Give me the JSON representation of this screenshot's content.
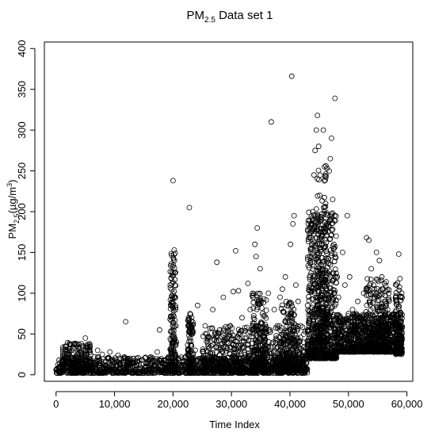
{
  "chart_data": {
    "type": "scatter",
    "title": {
      "main": "PM",
      "sub": "2.5",
      "rest": " Data set 1"
    },
    "xlabel": "Time Index",
    "ylabel": {
      "main": "PM",
      "sub": "2.5",
      "mid": "(µg/m",
      "sup": "3",
      "end": ")"
    },
    "xlim": [
      -2000,
      61000
    ],
    "ylim": [
      -8,
      408
    ],
    "x_ticks": [
      0,
      10000,
      20000,
      30000,
      40000,
      50000,
      60000
    ],
    "x_tick_labels": [
      "0",
      "10,000",
      "20,000",
      "30,000",
      "40,000",
      "50,000",
      "60,000"
    ],
    "y_ticks": [
      0,
      50,
      100,
      150,
      200,
      250,
      300,
      350,
      400
    ],
    "y_tick_labels": [
      "0",
      "50",
      "100",
      "150",
      "200",
      "250",
      "300",
      "350",
      "400"
    ],
    "grid": false,
    "marker": "open-circle",
    "marker_color": "#000000",
    "points": [
      [
        500,
        18
      ],
      [
        900,
        12
      ],
      [
        1200,
        5
      ],
      [
        1700,
        22
      ],
      [
        2100,
        15
      ],
      [
        2600,
        30
      ],
      [
        3000,
        38
      ],
      [
        3400,
        20
      ],
      [
        3900,
        10
      ],
      [
        4300,
        25
      ],
      [
        4700,
        35
      ],
      [
        5000,
        45
      ],
      [
        5300,
        18
      ],
      [
        5800,
        28
      ],
      [
        6200,
        12
      ],
      [
        6600,
        22
      ],
      [
        7100,
        30
      ],
      [
        7500,
        15
      ],
      [
        7900,
        25
      ],
      [
        8300,
        12
      ],
      [
        8800,
        20
      ],
      [
        9200,
        28
      ],
      [
        9700,
        10
      ],
      [
        10100,
        18
      ],
      [
        10600,
        24
      ],
      [
        11000,
        12
      ],
      [
        11500,
        20
      ],
      [
        11900,
        65
      ],
      [
        12300,
        15
      ],
      [
        12800,
        8
      ],
      [
        13300,
        14
      ],
      [
        13800,
        20
      ],
      [
        14200,
        12
      ],
      [
        14700,
        18
      ],
      [
        15200,
        10
      ],
      [
        15700,
        16
      ],
      [
        16200,
        22
      ],
      [
        16800,
        12
      ],
      [
        17300,
        28
      ],
      [
        17700,
        55
      ],
      [
        18200,
        15
      ],
      [
        18700,
        12
      ],
      [
        19200,
        20
      ],
      [
        19700,
        30
      ],
      [
        20000,
        238
      ],
      [
        20100,
        50
      ],
      [
        20200,
        153
      ],
      [
        20250,
        140
      ],
      [
        20300,
        125
      ],
      [
        20350,
        110
      ],
      [
        20400,
        95
      ],
      [
        20450,
        80
      ],
      [
        20500,
        60
      ],
      [
        20600,
        40
      ],
      [
        21000,
        20
      ],
      [
        21700,
        15
      ],
      [
        22500,
        25
      ],
      [
        22800,
        205
      ],
      [
        22900,
        75
      ],
      [
        23100,
        60
      ],
      [
        23300,
        50
      ],
      [
        23800,
        30
      ],
      [
        24200,
        85
      ],
      [
        24800,
        20
      ],
      [
        25500,
        60
      ],
      [
        26000,
        35
      ],
      [
        26800,
        80
      ],
      [
        27500,
        138
      ],
      [
        28000,
        55
      ],
      [
        28600,
        95
      ],
      [
        29200,
        40
      ],
      [
        29800,
        60
      ],
      [
        30300,
        102
      ],
      [
        30700,
        152
      ],
      [
        31200,
        103
      ],
      [
        31800,
        70
      ],
      [
        32300,
        45
      ],
      [
        32800,
        112
      ],
      [
        33200,
        80
      ],
      [
        33600,
        60
      ],
      [
        34000,
        160
      ],
      [
        34200,
        145
      ],
      [
        34400,
        180
      ],
      [
        34600,
        90
      ],
      [
        34900,
        130
      ],
      [
        35300,
        75
      ],
      [
        35800,
        55
      ],
      [
        36300,
        100
      ],
      [
        36800,
        310
      ],
      [
        37300,
        80
      ],
      [
        37800,
        60
      ],
      [
        38300,
        95
      ],
      [
        38700,
        105
      ],
      [
        39200,
        120
      ],
      [
        39600,
        70
      ],
      [
        40100,
        160
      ],
      [
        40300,
        366
      ],
      [
        40500,
        185
      ],
      [
        40700,
        195
      ],
      [
        41000,
        110
      ],
      [
        41400,
        90
      ],
      [
        41800,
        60
      ],
      [
        42300,
        40
      ],
      [
        42800,
        20
      ],
      [
        43200,
        30
      ],
      [
        43500,
        140
      ],
      [
        43700,
        160
      ],
      [
        43900,
        200
      ],
      [
        44100,
        245
      ],
      [
        44300,
        275
      ],
      [
        44500,
        300
      ],
      [
        44700,
        318
      ],
      [
        44900,
        280
      ],
      [
        45100,
        220
      ],
      [
        45300,
        190
      ],
      [
        45500,
        160
      ],
      [
        45700,
        300
      ],
      [
        45900,
        255
      ],
      [
        46100,
        210
      ],
      [
        46300,
        185
      ],
      [
        46500,
        175
      ],
      [
        46700,
        250
      ],
      [
        46900,
        265
      ],
      [
        47100,
        290
      ],
      [
        47300,
        215
      ],
      [
        47500,
        160
      ],
      [
        47700,
        339
      ],
      [
        47900,
        170
      ],
      [
        48100,
        120
      ],
      [
        48300,
        95
      ],
      [
        48600,
        70
      ],
      [
        49000,
        150
      ],
      [
        49400,
        110
      ],
      [
        49800,
        195
      ],
      [
        50200,
        120
      ],
      [
        50700,
        80
      ],
      [
        51100,
        60
      ],
      [
        51600,
        90
      ],
      [
        52100,
        70
      ],
      [
        52600,
        100
      ],
      [
        53100,
        168
      ],
      [
        53500,
        165
      ],
      [
        53900,
        130
      ],
      [
        54300,
        110
      ],
      [
        54800,
        150
      ],
      [
        55300,
        140
      ],
      [
        55700,
        120
      ],
      [
        56200,
        90
      ],
      [
        56700,
        80
      ],
      [
        57200,
        70
      ],
      [
        57700,
        60
      ],
      [
        58200,
        110
      ],
      [
        58600,
        148
      ],
      [
        58800,
        118
      ],
      [
        59000,
        95
      ]
    ],
    "bands": [
      {
        "x0": 0,
        "x1": 43000,
        "y0": 2,
        "y1": 22,
        "n": 1200
      },
      {
        "x0": 1000,
        "x1": 6000,
        "y0": 5,
        "y1": 40,
        "n": 200
      },
      {
        "x0": 19500,
        "x1": 20500,
        "y0": 5,
        "y1": 150,
        "n": 160
      },
      {
        "x0": 22500,
        "x1": 23500,
        "y0": 5,
        "y1": 75,
        "n": 100
      },
      {
        "x0": 25000,
        "x1": 43000,
        "y0": 5,
        "y1": 60,
        "n": 700
      },
      {
        "x0": 33500,
        "x1": 36000,
        "y0": 5,
        "y1": 100,
        "n": 180
      },
      {
        "x0": 38500,
        "x1": 41000,
        "y0": 5,
        "y1": 90,
        "n": 180
      },
      {
        "x0": 43000,
        "x1": 48000,
        "y0": 20,
        "y1": 200,
        "n": 700
      },
      {
        "x0": 44500,
        "x1": 46500,
        "y0": 40,
        "y1": 260,
        "n": 200
      },
      {
        "x0": 48000,
        "x1": 59200,
        "y0": 28,
        "y1": 75,
        "n": 900
      },
      {
        "x0": 53000,
        "x1": 57000,
        "y0": 30,
        "y1": 120,
        "n": 250
      },
      {
        "x0": 58000,
        "x1": 59200,
        "y0": 25,
        "y1": 120,
        "n": 100
      }
    ]
  }
}
